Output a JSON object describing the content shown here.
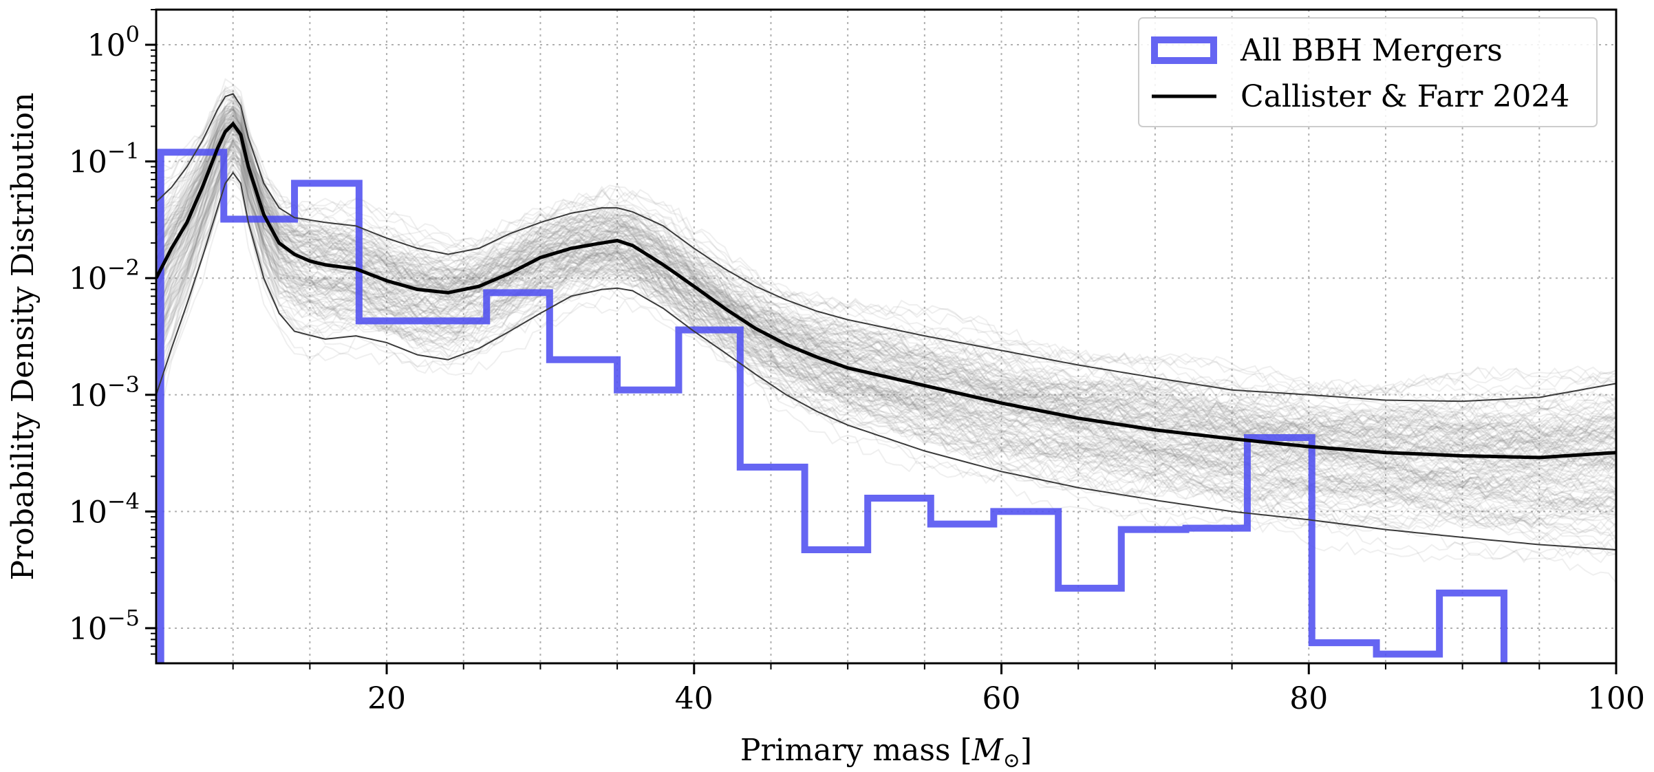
{
  "chart_data": {
    "type": "line",
    "xlabel_text": "Primary mass [",
    "xlabel_symbol": "M",
    "xlabel_close": "]",
    "ylabel": "Probability Density Distribution",
    "xlim": [
      5,
      100
    ],
    "ylim": [
      5e-06,
      2.0
    ],
    "yscale": "log",
    "grid": true,
    "legend_position": "top-right",
    "x_ticks": [
      20,
      40,
      60,
      80,
      100
    ],
    "x_minor_ticks": [
      10,
      15,
      25,
      30,
      35,
      45,
      50,
      55,
      65,
      70,
      75,
      85,
      90,
      95
    ],
    "y_tick_exponents": [
      0,
      -1,
      -2,
      -3,
      -4,
      -5
    ],
    "colors": {
      "histogram": "#5050f0",
      "median": "#000000",
      "band": "#3a3a3a",
      "draws": "#808080"
    },
    "series": [
      {
        "name": "All BBH Mergers",
        "kind": "step-histogram",
        "bin_edges": [
          5.3,
          9.4,
          14.0,
          18.2,
          22.4,
          26.5,
          30.6,
          35.0,
          39.0,
          43.0,
          47.2,
          51.3,
          55.4,
          59.5,
          63.7,
          67.8,
          72.0,
          76.0,
          80.2,
          84.4,
          88.5,
          92.7
        ],
        "values": [
          0.12,
          0.032,
          0.065,
          0.0043,
          0.0043,
          0.0075,
          0.002,
          0.0011,
          0.0036,
          0.00024,
          4.7e-05,
          0.00013,
          7.8e-05,
          0.0001,
          2.2e-05,
          7e-05,
          7.2e-05,
          0.00043,
          7.5e-06,
          6e-06,
          2e-05
        ]
      },
      {
        "name": "Callister & Farr 2024",
        "kind": "median-line",
        "x": [
          5,
          6,
          7,
          8,
          9,
          9.5,
          10,
          10.5,
          11,
          12,
          13,
          14,
          15,
          16,
          18,
          20,
          22,
          24,
          26,
          28,
          30,
          32,
          34,
          35,
          36,
          38,
          40,
          42,
          44,
          46,
          48,
          50,
          55,
          60,
          65,
          70,
          75,
          80,
          85,
          90,
          95,
          100
        ],
        "y": [
          0.01,
          0.018,
          0.03,
          0.06,
          0.13,
          0.18,
          0.21,
          0.17,
          0.09,
          0.035,
          0.02,
          0.016,
          0.014,
          0.013,
          0.012,
          0.0095,
          0.008,
          0.0075,
          0.0085,
          0.011,
          0.015,
          0.018,
          0.02,
          0.021,
          0.019,
          0.013,
          0.0085,
          0.0055,
          0.0037,
          0.0027,
          0.0021,
          0.0017,
          0.0012,
          0.00085,
          0.00063,
          0.0005,
          0.00042,
          0.00036,
          0.00032,
          0.0003,
          0.00029,
          0.00032
        ]
      }
    ],
    "band_upper": {
      "x": [
        5,
        6,
        7,
        8,
        9,
        9.5,
        10,
        10.5,
        11,
        12,
        13,
        14,
        16,
        18,
        20,
        22,
        24,
        26,
        28,
        30,
        32,
        34,
        35,
        36,
        38,
        40,
        42,
        44,
        46,
        48,
        50,
        55,
        60,
        65,
        70,
        75,
        80,
        85,
        90,
        95,
        100
      ],
      "y": [
        0.045,
        0.06,
        0.09,
        0.15,
        0.28,
        0.36,
        0.38,
        0.3,
        0.16,
        0.065,
        0.04,
        0.033,
        0.03,
        0.028,
        0.022,
        0.018,
        0.016,
        0.018,
        0.024,
        0.03,
        0.036,
        0.04,
        0.04,
        0.037,
        0.028,
        0.018,
        0.012,
        0.0085,
        0.0065,
        0.0052,
        0.0044,
        0.0032,
        0.0024,
        0.0018,
        0.0014,
        0.0011,
        0.001,
        0.0009,
        0.00088,
        0.00095,
        0.00125
      ]
    },
    "band_lower": {
      "x": [
        5,
        6,
        7,
        8,
        9,
        9.5,
        10,
        10.5,
        11,
        12,
        13,
        14,
        16,
        18,
        20,
        22,
        24,
        26,
        28,
        30,
        32,
        34,
        35,
        36,
        38,
        40,
        42,
        44,
        46,
        48,
        50,
        55,
        60,
        65,
        70,
        75,
        80,
        85,
        90,
        95,
        100
      ],
      "y": [
        0.001,
        0.0025,
        0.006,
        0.015,
        0.04,
        0.065,
        0.08,
        0.065,
        0.03,
        0.01,
        0.005,
        0.0035,
        0.003,
        0.0032,
        0.0028,
        0.0022,
        0.002,
        0.0025,
        0.0035,
        0.005,
        0.007,
        0.008,
        0.0082,
        0.0078,
        0.0055,
        0.0035,
        0.0023,
        0.0015,
        0.001,
        0.00072,
        0.00055,
        0.00033,
        0.00022,
        0.00016,
        0.000125,
        0.0001,
        8.5e-05,
        7e-05,
        6e-05,
        5.2e-05,
        4.7e-05
      ]
    }
  }
}
